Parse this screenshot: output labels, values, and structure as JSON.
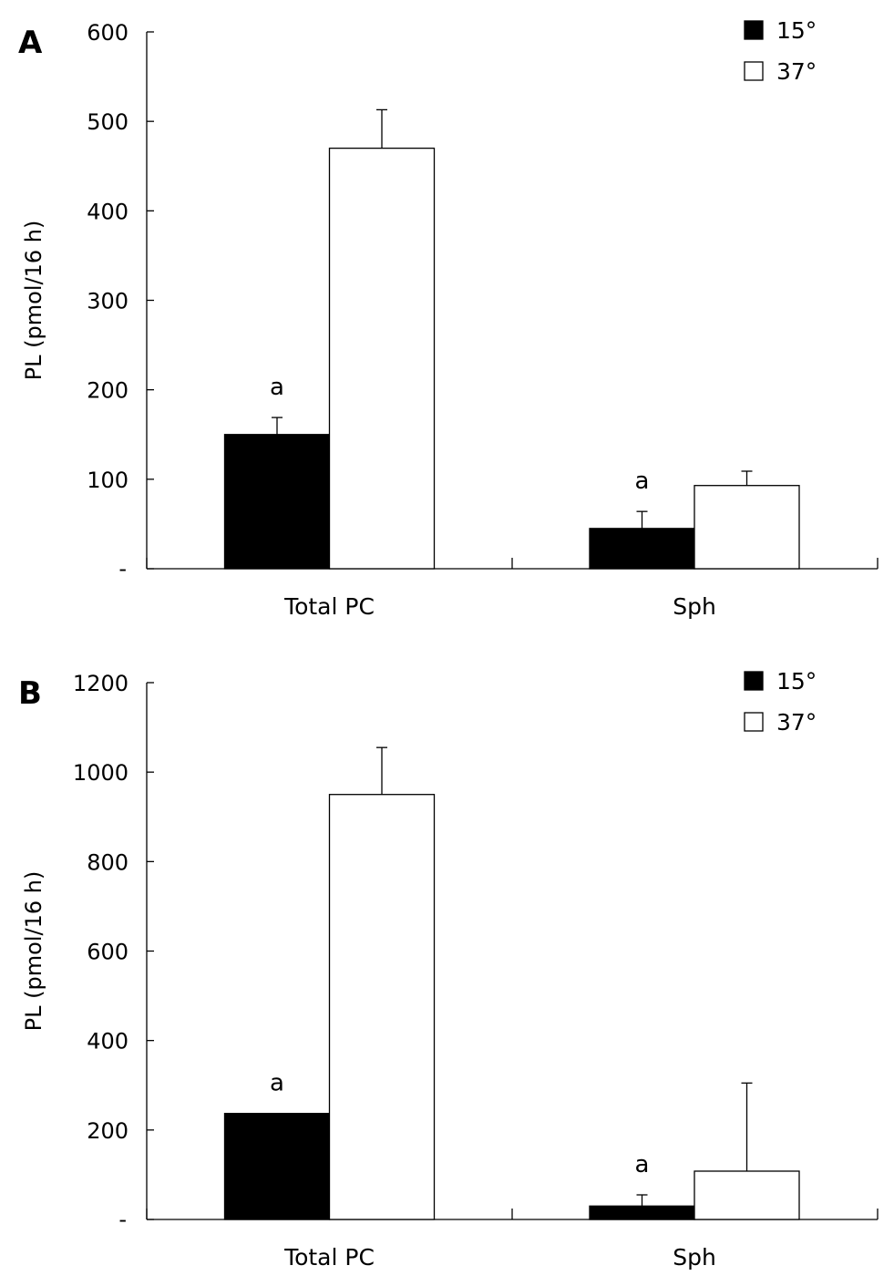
{
  "chart_data": [
    {
      "type": "bar",
      "panel": "A",
      "ylabel": "PL (pmol/16 h)",
      "ylim": [
        0,
        600
      ],
      "yticks": [
        100,
        200,
        300,
        400,
        500,
        600
      ],
      "zero_label": "-",
      "categories": [
        "Total PC",
        "Sph"
      ],
      "series": [
        {
          "name": "15°",
          "color": "#000000",
          "values": [
            150,
            45
          ],
          "errors": [
            19,
            19
          ],
          "annotations": [
            "a",
            "a"
          ]
        },
        {
          "name": "37°",
          "color": "#ffffff",
          "values": [
            470,
            93
          ],
          "errors": [
            43,
            16
          ],
          "annotations": [
            "",
            ""
          ]
        }
      ],
      "legend_position": "top-right",
      "grid": false
    },
    {
      "type": "bar",
      "panel": "B",
      "ylabel": "PL (pmol/16 h)",
      "ylim": [
        0,
        1200
      ],
      "yticks": [
        200,
        400,
        600,
        800,
        1000,
        1200
      ],
      "zero_label": "-",
      "categories": [
        "Total PC",
        "Sph"
      ],
      "series": [
        {
          "name": "15°",
          "color": "#000000",
          "values": [
            237,
            30
          ],
          "errors": [
            0,
            25
          ],
          "annotations": [
            "a",
            "a"
          ]
        },
        {
          "name": "37°",
          "color": "#ffffff",
          "values": [
            950,
            108
          ],
          "errors": [
            105,
            197
          ],
          "annotations": [
            "",
            ""
          ]
        }
      ],
      "legend_position": "top-right",
      "grid": false
    }
  ]
}
